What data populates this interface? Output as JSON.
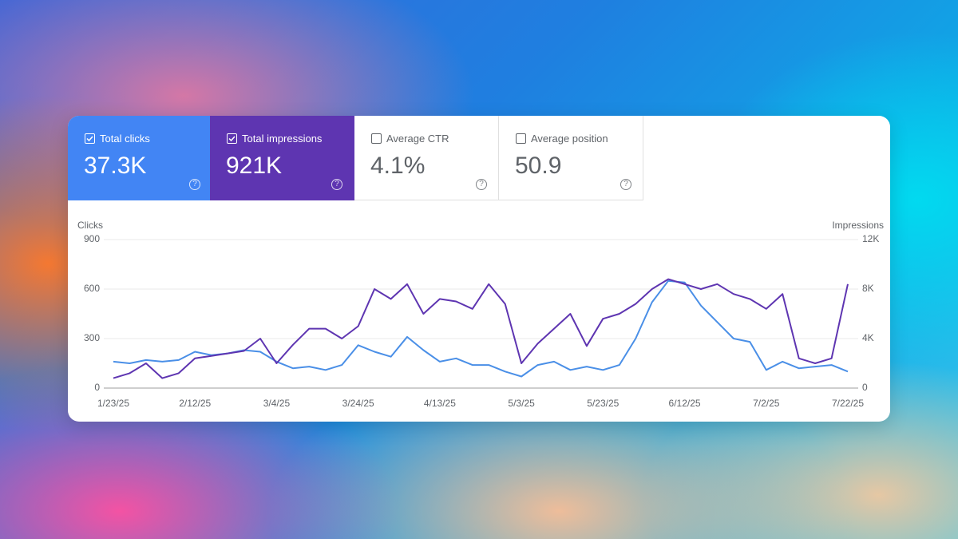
{
  "metrics": [
    {
      "label": "Total clicks",
      "value": "37.3K"
    },
    {
      "label": "Total impressions",
      "value": "921K"
    },
    {
      "label": "Average CTR",
      "value": "4.1%"
    },
    {
      "label": "Average position",
      "value": "50.9"
    }
  ],
  "chart_data": {
    "type": "line",
    "y_label": "Clicks",
    "y2_label": "Impressions",
    "x": [
      "1/23/25",
      "1/27/25",
      "1/31/25",
      "2/4/25",
      "2/8/25",
      "2/12/25",
      "2/16/25",
      "2/20/25",
      "2/24/25",
      "2/28/25",
      "3/4/25",
      "3/8/25",
      "3/12/25",
      "3/16/25",
      "3/20/25",
      "3/24/25",
      "3/28/25",
      "4/1/25",
      "4/5/25",
      "4/9/25",
      "4/13/25",
      "4/17/25",
      "4/21/25",
      "4/25/25",
      "4/29/25",
      "5/3/25",
      "5/7/25",
      "5/11/25",
      "5/15/25",
      "5/19/25",
      "5/23/25",
      "5/27/25",
      "5/31/25",
      "6/4/25",
      "6/8/25",
      "6/12/25",
      "6/16/25",
      "6/20/25",
      "6/24/25",
      "6/28/25",
      "7/2/25",
      "7/6/25",
      "7/10/25",
      "7/14/25",
      "7/18/25",
      "7/22/25"
    ],
    "xticks": [
      "1/23/25",
      "2/12/25",
      "3/4/25",
      "3/24/25",
      "4/13/25",
      "5/3/25",
      "5/23/25",
      "6/12/25",
      "7/2/25",
      "7/22/25"
    ],
    "series": [
      {
        "name": "Clicks",
        "color": "#4a8fe7",
        "values": [
          160,
          150,
          170,
          160,
          170,
          220,
          200,
          210,
          230,
          220,
          160,
          120,
          130,
          110,
          140,
          260,
          220,
          190,
          310,
          230,
          160,
          180,
          140,
          140,
          100,
          70,
          140,
          160,
          110,
          130,
          110,
          140,
          300,
          520,
          650,
          640,
          500,
          400,
          300,
          280,
          110,
          160,
          120,
          130,
          140,
          100
        ]
      },
      {
        "name": "Impressions",
        "color": "#5e35b1",
        "axis": "y2",
        "values": [
          800,
          1200,
          2000,
          800,
          1200,
          2400,
          2600,
          2800,
          3000,
          4000,
          2000,
          3500,
          4800,
          4800,
          4000,
          5000,
          8000,
          7200,
          8400,
          6000,
          7200,
          7000,
          6400,
          8400,
          6800,
          2000,
          3600,
          4800,
          6000,
          3400,
          5600,
          6000,
          6800,
          8000,
          8800,
          8400,
          8000,
          8400,
          7600,
          7200,
          6400,
          7600,
          2400,
          2000,
          2400,
          8400
        ]
      }
    ],
    "ylim": [
      0,
      900
    ],
    "yticks": [
      0,
      300,
      600,
      900
    ],
    "y2lim": [
      0,
      12000
    ],
    "y2ticks": [
      0,
      {
        "value": 4000,
        "label": "4K"
      },
      {
        "value": 8000,
        "label": "8K"
      },
      {
        "value": 12000,
        "label": "12K"
      }
    ],
    "grid": true
  }
}
